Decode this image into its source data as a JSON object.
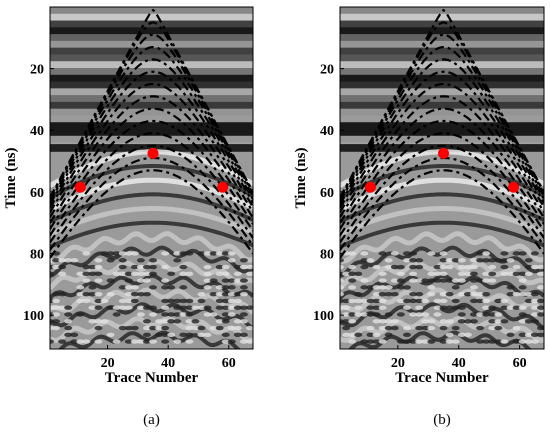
{
  "figure": {
    "panels": [
      "(a)",
      "(b)"
    ]
  },
  "chart_data": [
    {
      "type": "scatter",
      "panel_label": "(a)",
      "xlabel": "Trace Number",
      "ylabel": "Time (ns)",
      "xlim": [
        1,
        68
      ],
      "ylim": [
        111,
        0
      ],
      "y_inverted": true,
      "xticks": [
        20,
        40,
        60
      ],
      "yticks": [
        20,
        40,
        60,
        80,
        100
      ],
      "background": "grayscale GPR B-scan radargram",
      "overlay": "family of dashed black hyperbolas, apex near trace 35",
      "hyperbola_apex_times": [
        1,
        5,
        9,
        13,
        17,
        21,
        25,
        29,
        33,
        37,
        41,
        45,
        49,
        53
      ],
      "series": [
        {
          "name": "",
          "color": "#ff0000",
          "x": [
            11,
            35,
            58
          ],
          "y": [
            58.5,
            47.5,
            58.5
          ]
        }
      ]
    },
    {
      "type": "scatter",
      "panel_label": "(b)",
      "xlabel": "Trace Number",
      "ylabel": "Time (ns)",
      "xlim": [
        1,
        68
      ],
      "ylim": [
        111,
        0
      ],
      "y_inverted": true,
      "xticks": [
        20,
        40,
        60
      ],
      "yticks": [
        20,
        40,
        60,
        80,
        100
      ],
      "background": "grayscale GPR B-scan radargram",
      "overlay": "family of dashed black hyperbolas, apex near trace 35",
      "hyperbola_apex_times": [
        1,
        5,
        9,
        13,
        17,
        21,
        25,
        29,
        33,
        37,
        41,
        45,
        49,
        53
      ],
      "series": [
        {
          "name": "",
          "color": "#ff0000",
          "x": [
            11,
            35,
            58
          ],
          "y": [
            58.5,
            47.5,
            58.5
          ]
        }
      ]
    }
  ]
}
